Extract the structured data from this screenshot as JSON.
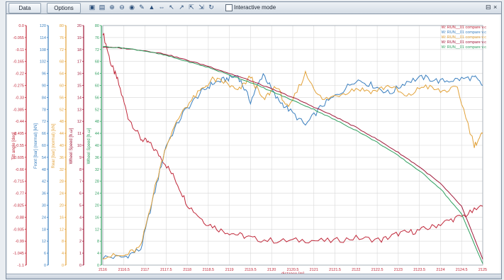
{
  "toolbar": {
    "data_tab": "Data",
    "options_tab": "Options",
    "interactive_mode_label": "Interactive mode",
    "interactive_mode_checked": false,
    "tools": [
      "toolbar-copy-icon",
      "toolbar-export-icon",
      "zoom-in-icon",
      "zoom-out-icon",
      "eye-icon",
      "cursor-icon",
      "pointer-icon",
      "cursor-pair-icon",
      "cursor-left-icon",
      "cursor-right-icon",
      "cursor-reset-icon",
      "cursor-delete-icon",
      "refresh-icon"
    ],
    "close_glyph": "×"
  },
  "colors": {
    "red": "#c0283a",
    "blue": "#3a7fbf",
    "orange": "#e2a23a",
    "darkred": "#a01838",
    "green": "#2f9f5f",
    "grid": "#d8d8d8"
  },
  "legend": [
    {
      "label": "W: RUN__01 compare v.c",
      "color": "#c0283a"
    },
    {
      "label": "W: RUN__01 compare v.c",
      "color": "#3a7fbf"
    },
    {
      "label": "W: RUN__01 compare v.c",
      "color": "#e2a23a"
    },
    {
      "label": "W: RUN__01 compare v.c",
      "color": "#a01838"
    },
    {
      "label": "W: RUN__01 compare v.c",
      "color": "#2f9f5f"
    }
  ],
  "chart_data": {
    "type": "line",
    "xlabel": "distance [m]",
    "x_ticks": [
      "2116",
      "2116.5",
      "2117",
      "2117.5",
      "2118",
      "2118.5",
      "2119",
      "2119.5",
      "2120",
      "2120.5",
      "2121",
      "2121.5",
      "2122",
      "2122.5",
      "2123",
      "2123.5",
      "2124",
      "2124.5",
      "2125"
    ],
    "y_axes": [
      {
        "label": "Tilt angle [deg]",
        "color": "#c0283a",
        "ticks": [
          "0.0",
          "-0.055",
          "-0.11",
          "-0.165",
          "-0.22",
          "-0.275",
          "-0.33",
          "-0.385",
          "-0.44",
          "-0.495",
          "-0.55",
          "-0.605",
          "-0.66",
          "-0.715",
          "-0.77",
          "-0.825",
          "-0.88",
          "-0.935",
          "-0.99",
          "-1.045",
          "-1.1"
        ]
      },
      {
        "label": "Front [bar] (normal) [kN]",
        "color": "#3a7fbf",
        "ticks": [
          "120",
          "114",
          "108",
          "102",
          "96",
          "90",
          "84",
          "78",
          "72",
          "66",
          "60",
          "54",
          "48",
          "42",
          "36",
          "30",
          "24",
          "18",
          "12",
          "6",
          "0"
        ]
      },
      {
        "label": "Rear [bar] (normal) [kN]",
        "color": "#e2a23a",
        "ticks": [
          "80",
          "76",
          "72",
          "68",
          "64",
          "60",
          "56",
          "52",
          "48",
          "44",
          "40",
          "36",
          "32",
          "28",
          "24",
          "20",
          "16",
          "12",
          "8",
          "4",
          "0"
        ]
      },
      {
        "label": "Wheel Speed [h.ω]",
        "color": "#a01838",
        "ticks": [
          "20",
          "19",
          "18",
          "17",
          "16",
          "15",
          "14",
          "13",
          "12",
          "11",
          "10",
          "9",
          "8",
          "7",
          "6",
          "5",
          "4",
          "3",
          "2",
          "1",
          "0"
        ]
      },
      {
        "label": "Wheel Speed [h.ω]",
        "color": "#2f9f5f",
        "ticks": [
          "80",
          "76",
          "72",
          "68",
          "64",
          "60",
          "56",
          "52",
          "48",
          "44",
          "40",
          "36",
          "32",
          "28",
          "24",
          "20",
          "16",
          "12",
          "8",
          "4",
          "0"
        ]
      }
    ],
    "series": [
      {
        "name": "W: RUN__01 compare v.c",
        "axis": 0,
        "color": "#c0283a",
        "x": [
          2116,
          2116.2,
          2116.35,
          2116.6,
          2116.9,
          2117.1,
          2117.4,
          2117.7,
          2118,
          2118.4,
          2118.8,
          2119.2,
          2119.6,
          2120.2,
          2120.8,
          2121.4,
          2122,
          2122.6,
          2123,
          2123.4,
          2123.8,
          2124.2,
          2124.6,
          2125
        ],
        "y": [
          -0.03,
          -0.18,
          -0.25,
          -0.42,
          -0.52,
          -0.54,
          -0.61,
          -0.7,
          -0.82,
          -0.9,
          -0.94,
          -0.96,
          -0.98,
          -0.99,
          -0.985,
          -0.99,
          -0.975,
          -0.985,
          -0.955,
          -0.945,
          -0.925,
          -0.895,
          -0.87,
          -0.83
        ]
      },
      {
        "name": "W: RUN__01 compare v.c",
        "axis": 1,
        "color": "#3a7fbf",
        "x": [
          2116,
          2116.5,
          2116.9,
          2117.2,
          2117.5,
          2117.9,
          2118.3,
          2118.6,
          2118.9,
          2119.2,
          2119.5,
          2119.8,
          2120.1,
          2120.4,
          2120.8,
          2121.2,
          2121.6,
          2122,
          2122.4,
          2122.8,
          2123.2,
          2123.6,
          2124,
          2124.4,
          2124.8,
          2125
        ],
        "y": [
          4,
          4,
          8,
          34,
          60,
          76,
          86,
          91,
          93,
          95,
          82,
          96,
          84,
          78,
          70,
          80,
          86,
          93,
          90,
          86,
          92,
          94,
          92,
          93,
          94,
          90
        ]
      },
      {
        "name": "W: RUN__01 compare v.c",
        "axis": 2,
        "color": "#e2a23a",
        "x": [
          2116,
          2116.5,
          2116.9,
          2117.2,
          2117.5,
          2117.9,
          2118.3,
          2118.6,
          2118.9,
          2119.2,
          2119.5,
          2119.8,
          2120.1,
          2120.4,
          2120.8,
          2121.2,
          2121.6,
          2122,
          2122.4,
          2122.8,
          2123.2,
          2123.6,
          2124,
          2124.4,
          2124.8,
          2125
        ],
        "y": [
          3,
          3,
          6,
          24,
          40,
          52,
          58,
          62,
          61,
          58,
          63,
          55,
          60,
          52,
          64,
          55,
          57,
          59,
          58,
          60,
          56,
          60,
          58,
          59,
          40,
          44
        ]
      },
      {
        "name": "W: RUN__01 compare v.c",
        "axis": 3,
        "color": "#a01838",
        "x": [
          2116,
          2116.5,
          2117,
          2117.5,
          2118,
          2118.5,
          2119,
          2119.5,
          2120,
          2120.5,
          2121,
          2121.5,
          2122,
          2122.5,
          2123,
          2123.5,
          2124,
          2124.5,
          2125
        ],
        "y": [
          18.2,
          18.1,
          17.9,
          17.6,
          17.1,
          16.6,
          16.0,
          15.4,
          14.7,
          14.0,
          13.2,
          12.4,
          11.5,
          10.5,
          9.4,
          8.2,
          6.8,
          4.9,
          0.5
        ]
      },
      {
        "name": "W: RUN__01 compare v.c",
        "axis": 4,
        "color": "#2f9f5f",
        "x": [
          2116,
          2116.5,
          2117,
          2117.5,
          2118,
          2118.5,
          2119,
          2119.5,
          2120,
          2120.5,
          2121,
          2121.5,
          2122,
          2122.5,
          2123,
          2123.5,
          2124,
          2124.5,
          2125
        ],
        "y": [
          73,
          72.5,
          71.5,
          70,
          68,
          66,
          63.5,
          61,
          58,
          55,
          52,
          48.5,
          45,
          41,
          36.5,
          31.5,
          25.5,
          17,
          0.5
        ]
      }
    ],
    "xlim": [
      2116,
      2125
    ],
    "grid": true,
    "legend_position": "top-right"
  }
}
